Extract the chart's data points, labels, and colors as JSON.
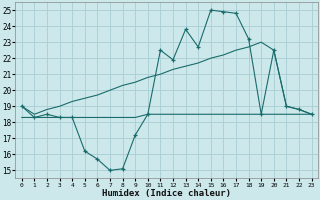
{
  "xlabel": "Humidex (Indice chaleur)",
  "bg_color": "#cce8eb",
  "grid_color": "#a8cdd2",
  "line_color": "#1a6b6b",
  "x": [
    0,
    1,
    2,
    3,
    4,
    5,
    6,
    7,
    8,
    9,
    10,
    11,
    12,
    13,
    14,
    15,
    16,
    17,
    18,
    19,
    20,
    21,
    22,
    23
  ],
  "y_jagged": [
    19.0,
    18.3,
    18.5,
    18.3,
    18.3,
    16.2,
    15.7,
    15.0,
    15.1,
    17.2,
    18.5,
    22.5,
    21.9,
    23.8,
    22.7,
    25.0,
    24.9,
    24.8,
    23.2,
    18.5,
    22.5,
    19.0,
    18.8,
    18.5
  ],
  "y_flat": [
    18.3,
    18.3,
    18.3,
    18.3,
    18.3,
    18.3,
    18.3,
    18.3,
    18.3,
    18.3,
    18.5,
    18.5,
    18.5,
    18.5,
    18.5,
    18.5,
    18.5,
    18.5,
    18.5,
    18.5,
    18.5,
    18.5,
    18.5,
    18.5
  ],
  "y_trend": [
    19.0,
    18.5,
    18.8,
    19.0,
    19.3,
    19.5,
    19.7,
    20.0,
    20.3,
    20.5,
    20.8,
    21.0,
    21.3,
    21.5,
    21.7,
    22.0,
    22.2,
    22.5,
    22.7,
    23.0,
    22.5,
    19.0,
    18.8,
    18.5
  ],
  "ylim": [
    14.5,
    25.5
  ],
  "xlim": [
    -0.5,
    23.5
  ],
  "yticks": [
    15,
    16,
    17,
    18,
    19,
    20,
    21,
    22,
    23,
    24,
    25
  ],
  "xticks": [
    0,
    1,
    2,
    3,
    4,
    5,
    6,
    7,
    8,
    9,
    10,
    11,
    12,
    13,
    14,
    15,
    16,
    17,
    18,
    19,
    20,
    21,
    22,
    23
  ],
  "tick_fontsize": 5.5,
  "xlabel_fontsize": 6.5
}
